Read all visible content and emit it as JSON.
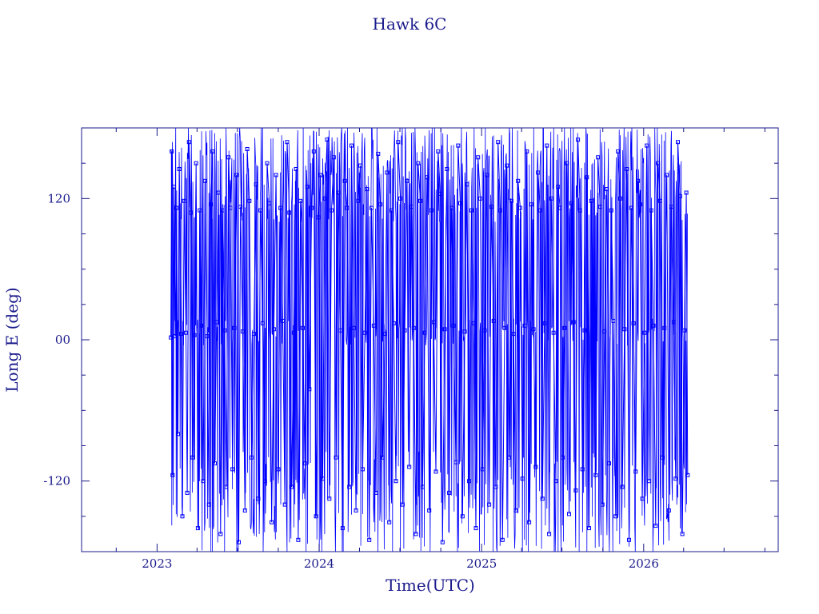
{
  "chart_data": {
    "type": "scatter",
    "title": "Hawk 6C",
    "xlabel": "Time(UTC)",
    "ylabel": "Long E (deg)",
    "x_ticks": [
      "2023",
      "2024",
      "2025",
      "2026"
    ],
    "y_ticks": [
      "-120",
      "00",
      "120"
    ],
    "xlim": [
      "2022-07-15",
      "2026-10-31"
    ],
    "ylim": [
      -180,
      180
    ],
    "grid": false,
    "legend": "none",
    "data_start": "2023-02-01",
    "data_end": "2026-04-10",
    "line_color": "#0000ff",
    "axis_color": "#1a1a8c",
    "series": [
      {
        "points": [
          [
            "2023-02-01",
            2
          ],
          [
            "2023-02-03",
            160
          ],
          [
            "2023-02-05",
            -115
          ],
          [
            "2023-02-08",
            130
          ],
          [
            "2023-02-11",
            3
          ],
          [
            "2023-02-14",
            112
          ],
          [
            "2023-02-17",
            -80
          ],
          [
            "2023-02-20",
            145
          ],
          [
            "2023-02-24",
            5
          ],
          [
            "2023-02-27",
            -150
          ],
          [
            "2023-03-03",
            118
          ],
          [
            "2023-03-07",
            6
          ],
          [
            "2023-03-10",
            -130
          ],
          [
            "2023-03-14",
            168
          ],
          [
            "2023-03-18",
            108
          ],
          [
            "2023-03-22",
            -100
          ],
          [
            "2023-03-26",
            4
          ],
          [
            "2023-03-30",
            150
          ],
          [
            "2023-04-03",
            -160
          ],
          [
            "2023-04-07",
            110
          ],
          [
            "2023-04-11",
            12
          ],
          [
            "2023-04-15",
            -120
          ],
          [
            "2023-04-19",
            135
          ],
          [
            "2023-04-24",
            3
          ],
          [
            "2023-04-28",
            -140
          ],
          [
            "2023-05-02",
            115
          ],
          [
            "2023-05-06",
            160
          ],
          [
            "2023-05-11",
            -105
          ],
          [
            "2023-05-15",
            15
          ],
          [
            "2023-05-19",
            125
          ],
          [
            "2023-05-24",
            -165
          ],
          [
            "2023-05-28",
            110
          ],
          [
            "2023-06-02",
            8
          ],
          [
            "2023-06-06",
            -125
          ],
          [
            "2023-06-11",
            155
          ],
          [
            "2023-06-15",
            112
          ],
          [
            "2023-06-20",
            -110
          ],
          [
            "2023-06-24",
            10
          ],
          [
            "2023-06-29",
            140
          ],
          [
            "2023-07-04",
            -172
          ],
          [
            "2023-07-08",
            113
          ],
          [
            "2023-07-13",
            7
          ],
          [
            "2023-07-18",
            -145
          ],
          [
            "2023-07-23",
            162
          ],
          [
            "2023-07-28",
            118
          ],
          [
            "2023-08-02",
            -100
          ],
          [
            "2023-08-07",
            5
          ],
          [
            "2023-08-12",
            132
          ],
          [
            "2023-08-17",
            -135
          ],
          [
            "2023-08-22",
            110
          ],
          [
            "2023-08-27",
            14
          ],
          [
            "2023-09-01",
            -120
          ],
          [
            "2023-09-06",
            150
          ],
          [
            "2023-09-11",
            116
          ],
          [
            "2023-09-16",
            -155
          ],
          [
            "2023-09-21",
            9
          ],
          [
            "2023-09-26",
            140
          ],
          [
            "2023-10-01",
            -110
          ],
          [
            "2023-10-06",
            112
          ],
          [
            "2023-10-11",
            16
          ],
          [
            "2023-10-16",
            -140
          ],
          [
            "2023-10-21",
            168
          ],
          [
            "2023-10-26",
            108
          ],
          [
            "2023-10-31",
            -125
          ],
          [
            "2023-11-05",
            6
          ],
          [
            "2023-11-10",
            145
          ],
          [
            "2023-11-15",
            -170
          ],
          [
            "2023-11-20",
            118
          ],
          [
            "2023-11-25",
            10
          ],
          [
            "2023-11-30",
            -105
          ],
          [
            "2023-12-05",
            130
          ],
          [
            "2023-12-10",
            -42
          ],
          [
            "2023-12-15",
            112
          ],
          [
            "2023-12-20",
            160
          ],
          [
            "2023-12-25",
            -150
          ],
          [
            "2023-12-30",
            104
          ],
          [
            "2024-01-04",
            140
          ],
          [
            "2024-01-09",
            -118
          ],
          [
            "2024-01-14",
            120
          ],
          [
            "2024-01-19",
            170
          ],
          [
            "2024-01-24",
            -135
          ],
          [
            "2024-01-29",
            110
          ],
          [
            "2024-02-03",
            155
          ],
          [
            "2024-02-08",
            -100
          ],
          [
            "2024-02-13",
            125
          ],
          [
            "2024-02-18",
            8
          ],
          [
            "2024-02-23",
            -160
          ],
          [
            "2024-02-28",
            135
          ],
          [
            "2024-03-04",
            112
          ],
          [
            "2024-03-09",
            -125
          ],
          [
            "2024-03-14",
            165
          ],
          [
            "2024-03-19",
            10
          ],
          [
            "2024-03-24",
            -145
          ],
          [
            "2024-03-29",
            118
          ],
          [
            "2024-04-03",
            148
          ],
          [
            "2024-04-08",
            -110
          ],
          [
            "2024-04-13",
            6
          ],
          [
            "2024-04-18",
            128
          ],
          [
            "2024-04-23",
            -170
          ],
          [
            "2024-04-28",
            112
          ],
          [
            "2024-05-03",
            12
          ],
          [
            "2024-05-08",
            -130
          ],
          [
            "2024-05-13",
            158
          ],
          [
            "2024-05-18",
            115
          ],
          [
            "2024-05-23",
            -100
          ],
          [
            "2024-05-28",
            5
          ],
          [
            "2024-06-02",
            142
          ],
          [
            "2024-06-07",
            -155
          ],
          [
            "2024-06-12",
            110
          ],
          [
            "2024-06-17",
            14
          ],
          [
            "2024-06-22",
            -120
          ],
          [
            "2024-06-27",
            168
          ],
          [
            "2024-07-02",
            120
          ],
          [
            "2024-07-07",
            -140
          ],
          [
            "2024-07-12",
            8
          ],
          [
            "2024-07-17",
            135
          ],
          [
            "2024-07-22",
            -108
          ],
          [
            "2024-07-27",
            113
          ],
          [
            "2024-08-01",
            10
          ],
          [
            "2024-08-06",
            -165
          ],
          [
            "2024-08-11",
            150
          ],
          [
            "2024-08-16",
            118
          ],
          [
            "2024-08-21",
            -125
          ],
          [
            "2024-08-26",
            6
          ],
          [
            "2024-08-31",
            138
          ],
          [
            "2024-09-05",
            -145
          ],
          [
            "2024-09-10",
            110
          ],
          [
            "2024-09-15",
            15
          ],
          [
            "2024-09-20",
            -112
          ],
          [
            "2024-09-25",
            160
          ],
          [
            "2024-09-30",
            124
          ],
          [
            "2024-10-05",
            -172
          ],
          [
            "2024-10-10",
            9
          ],
          [
            "2024-10-15",
            145
          ],
          [
            "2024-10-20",
            -130
          ],
          [
            "2024-10-25",
            112
          ],
          [
            "2024-10-30",
            12
          ],
          [
            "2024-11-04",
            -104
          ],
          [
            "2024-11-09",
            165
          ],
          [
            "2024-11-14",
            116
          ],
          [
            "2024-11-19",
            -150
          ],
          [
            "2024-11-24",
            7
          ],
          [
            "2024-11-29",
            132
          ],
          [
            "2024-12-04",
            -120
          ],
          [
            "2024-12-09",
            110
          ],
          [
            "2024-12-14",
            14
          ],
          [
            "2024-12-19",
            -160
          ],
          [
            "2024-12-24",
            155
          ],
          [
            "2024-12-29",
            120
          ],
          [
            "2025-01-03",
            -110
          ],
          [
            "2025-01-08",
            8
          ],
          [
            "2025-01-13",
            140
          ],
          [
            "2025-01-18",
            -140
          ],
          [
            "2025-01-23",
            113
          ],
          [
            "2025-01-28",
            16
          ],
          [
            "2025-02-02",
            -125
          ],
          [
            "2025-02-07",
            168
          ],
          [
            "2025-02-12",
            110
          ],
          [
            "2025-02-17",
            -170
          ],
          [
            "2025-02-22",
            10
          ],
          [
            "2025-02-27",
            148
          ],
          [
            "2025-03-04",
            -100
          ],
          [
            "2025-03-09",
            118
          ],
          [
            "2025-03-14",
            5
          ],
          [
            "2025-03-19",
            -145
          ],
          [
            "2025-03-24",
            135
          ],
          [
            "2025-03-29",
            112
          ],
          [
            "2025-04-03",
            -118
          ],
          [
            "2025-04-08",
            12
          ],
          [
            "2025-04-13",
            160
          ],
          [
            "2025-04-18",
            -155
          ],
          [
            "2025-04-23",
            115
          ],
          [
            "2025-04-28",
            9
          ],
          [
            "2025-05-03",
            -108
          ],
          [
            "2025-05-08",
            142
          ],
          [
            "2025-05-13",
            110
          ],
          [
            "2025-05-18",
            -135
          ],
          [
            "2025-05-23",
            14
          ],
          [
            "2025-05-28",
            165
          ],
          [
            "2025-06-02",
            -165
          ],
          [
            "2025-06-07",
            120
          ],
          [
            "2025-06-12",
            6
          ],
          [
            "2025-06-17",
            -120
          ],
          [
            "2025-06-22",
            130
          ],
          [
            "2025-06-27",
            112
          ],
          [
            "2025-07-02",
            -100
          ],
          [
            "2025-07-07",
            10
          ],
          [
            "2025-07-12",
            150
          ],
          [
            "2025-07-17",
            -148
          ],
          [
            "2025-07-22",
            116
          ],
          [
            "2025-07-27",
            15
          ],
          [
            "2025-08-01",
            -128
          ],
          [
            "2025-08-06",
            170
          ],
          [
            "2025-08-11",
            110
          ],
          [
            "2025-08-16",
            -110
          ],
          [
            "2025-08-21",
            8
          ],
          [
            "2025-08-26",
            138
          ],
          [
            "2025-08-31",
            -160
          ],
          [
            "2025-09-05",
            118
          ],
          [
            "2025-09-10",
            12
          ],
          [
            "2025-09-15",
            -115
          ],
          [
            "2025-09-20",
            155
          ],
          [
            "2025-09-25",
            113
          ],
          [
            "2025-09-30",
            -140
          ],
          [
            "2025-10-05",
            7
          ],
          [
            "2025-10-10",
            128
          ],
          [
            "2025-10-15",
            -105
          ],
          [
            "2025-10-20",
            110
          ],
          [
            "2025-10-25",
            16
          ],
          [
            "2025-10-30",
            -150
          ],
          [
            "2025-11-04",
            160
          ],
          [
            "2025-11-09",
            120
          ],
          [
            "2025-11-14",
            -125
          ],
          [
            "2025-11-19",
            9
          ],
          [
            "2025-11-24",
            145
          ],
          [
            "2025-11-29",
            -170
          ],
          [
            "2025-12-04",
            112
          ],
          [
            "2025-12-09",
            14
          ],
          [
            "2025-12-14",
            -112
          ],
          [
            "2025-12-19",
            135
          ],
          [
            "2025-12-24",
            115
          ],
          [
            "2025-12-29",
            -135
          ],
          [
            "2026-01-03",
            6
          ],
          [
            "2026-01-08",
            165
          ],
          [
            "2026-01-13",
            -120
          ],
          [
            "2026-01-18",
            110
          ],
          [
            "2026-01-23",
            12
          ],
          [
            "2026-01-28",
            -158
          ],
          [
            "2026-02-02",
            150
          ],
          [
            "2026-02-07",
            118
          ],
          [
            "2026-02-12",
            -100
          ],
          [
            "2026-02-17",
            10
          ],
          [
            "2026-02-22",
            140
          ],
          [
            "2026-02-27",
            -145
          ],
          [
            "2026-03-04",
            113
          ],
          [
            "2026-03-09",
            15
          ],
          [
            "2026-03-14",
            -118
          ],
          [
            "2026-03-19",
            168
          ],
          [
            "2026-03-24",
            122
          ],
          [
            "2026-03-29",
            -165
          ],
          [
            "2026-04-03",
            8
          ],
          [
            "2026-04-07",
            125
          ],
          [
            "2026-04-10",
            -115
          ]
        ]
      }
    ]
  }
}
